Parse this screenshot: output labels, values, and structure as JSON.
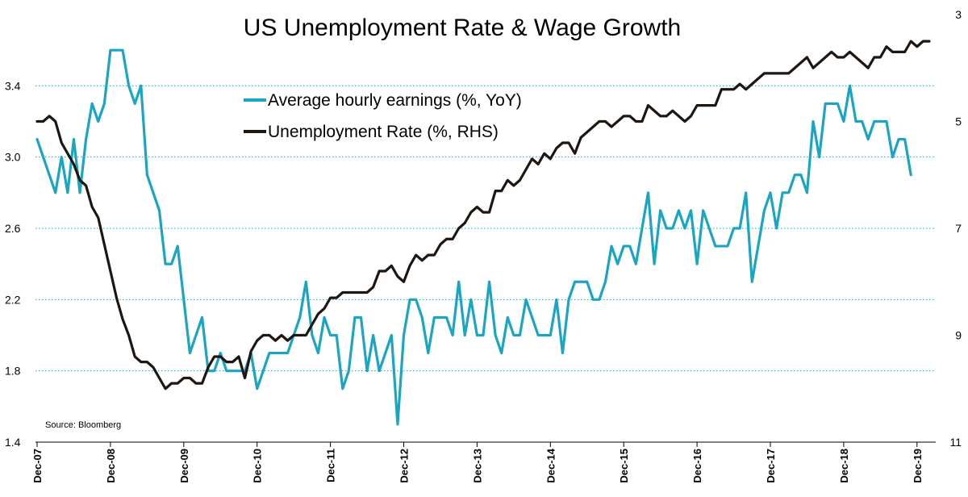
{
  "chart_data": {
    "type": "line",
    "title": "US Unemployment Rate & Wage Growth",
    "source": "Source: Bloomberg",
    "x_tick_labels": [
      "Dec-07",
      "Dec-08",
      "Dec-09",
      "Dec-10",
      "Dec-11",
      "Dec-12",
      "Dec-13",
      "Dec-14",
      "Dec-15",
      "Dec-16",
      "Dec-17",
      "Dec-18",
      "Dec-19"
    ],
    "x_start": "Dec-07",
    "x_frequency": "monthly",
    "y_left": {
      "lim": [
        1.4,
        3.8
      ],
      "ticks": [
        "1.4",
        "1.8",
        "2.2",
        "2.6",
        "3.0",
        "3.4"
      ],
      "gridlines": [
        1.8,
        2.2,
        2.6,
        3.0,
        3.4
      ]
    },
    "y_right": {
      "lim": [
        11,
        3
      ],
      "inverted": true,
      "ticks": [
        "3",
        "5",
        "7",
        "9",
        "11"
      ]
    },
    "legend_position": "top-center",
    "grid": "dotted horizontal",
    "series": [
      {
        "name": "Average hourly earnings (%, YoY)",
        "axis": "left",
        "color": "#1aa6c2",
        "values": [
          3.1,
          3.0,
          2.9,
          2.8,
          3.0,
          2.8,
          3.1,
          2.8,
          3.1,
          3.3,
          3.2,
          3.3,
          3.6,
          3.6,
          3.6,
          3.4,
          3.3,
          3.4,
          2.9,
          2.8,
          2.7,
          2.4,
          2.4,
          2.5,
          2.2,
          1.9,
          2.0,
          2.1,
          1.8,
          1.8,
          1.9,
          1.8,
          1.8,
          1.8,
          1.8,
          1.9,
          1.7,
          1.8,
          1.9,
          1.9,
          1.9,
          1.9,
          2.0,
          2.1,
          2.3,
          2.0,
          1.9,
          2.1,
          2.0,
          2.0,
          1.7,
          1.8,
          2.1,
          2.1,
          1.8,
          2.0,
          1.8,
          1.9,
          2.0,
          1.5,
          2.0,
          2.2,
          2.2,
          2.1,
          1.9,
          2.1,
          2.1,
          2.1,
          2.0,
          2.3,
          2.0,
          2.2,
          2.0,
          2.0,
          2.3,
          2.0,
          1.9,
          2.1,
          2.0,
          2.0,
          2.2,
          2.1,
          2.0,
          2.0,
          2.0,
          2.2,
          1.9,
          2.2,
          2.3,
          2.3,
          2.3,
          2.2,
          2.2,
          2.3,
          2.5,
          2.4,
          2.5,
          2.5,
          2.4,
          2.6,
          2.8,
          2.4,
          2.7,
          2.6,
          2.6,
          2.7,
          2.6,
          2.7,
          2.4,
          2.7,
          2.6,
          2.5,
          2.5,
          2.5,
          2.6,
          2.6,
          2.8,
          2.3,
          2.5,
          2.7,
          2.8,
          2.6,
          2.8,
          2.8,
          2.9,
          2.9,
          2.8,
          3.2,
          3.0,
          3.3,
          3.3,
          3.3,
          3.2,
          3.4,
          3.2,
          3.2,
          3.1,
          3.2,
          3.2,
          3.2,
          3.0,
          3.1,
          3.1,
          2.9
        ]
      },
      {
        "name": "Unemployment Rate (%, RHS)",
        "axis": "right",
        "color": "#1e1610",
        "values": [
          5.0,
          5.0,
          4.9,
          5.0,
          5.4,
          5.6,
          5.8,
          6.1,
          6.2,
          6.6,
          6.8,
          7.3,
          7.8,
          8.3,
          8.7,
          9.0,
          9.4,
          9.5,
          9.5,
          9.6,
          9.8,
          10.0,
          9.9,
          9.9,
          9.8,
          9.8,
          9.9,
          9.9,
          9.6,
          9.4,
          9.4,
          9.5,
          9.5,
          9.4,
          9.8,
          9.3,
          9.1,
          9.0,
          9.0,
          9.1,
          9.0,
          9.1,
          9.0,
          9.0,
          9.0,
          8.8,
          8.6,
          8.5,
          8.3,
          8.3,
          8.2,
          8.2,
          8.2,
          8.2,
          8.2,
          8.1,
          7.8,
          7.8,
          7.7,
          7.9,
          8.0,
          7.7,
          7.5,
          7.6,
          7.5,
          7.5,
          7.3,
          7.2,
          7.2,
          7.0,
          6.9,
          6.7,
          6.6,
          6.7,
          6.7,
          6.3,
          6.3,
          6.1,
          6.2,
          6.1,
          5.9,
          5.7,
          5.8,
          5.6,
          5.7,
          5.5,
          5.4,
          5.4,
          5.6,
          5.3,
          5.2,
          5.1,
          5.0,
          5.0,
          5.1,
          5.0,
          4.9,
          4.9,
          5.0,
          5.0,
          4.7,
          4.8,
          4.9,
          4.9,
          4.8,
          4.9,
          5.0,
          4.9,
          4.7,
          4.7,
          4.7,
          4.7,
          4.4,
          4.4,
          4.4,
          4.3,
          4.4,
          4.3,
          4.2,
          4.1,
          4.1,
          4.1,
          4.1,
          4.1,
          4.0,
          3.9,
          3.8,
          4.0,
          3.9,
          3.8,
          3.7,
          3.8,
          3.8,
          3.7,
          3.8,
          3.9,
          4.0,
          3.8,
          3.8,
          3.6,
          3.7,
          3.7,
          3.7,
          3.5,
          3.6,
          3.5,
          3.5
        ]
      }
    ]
  }
}
